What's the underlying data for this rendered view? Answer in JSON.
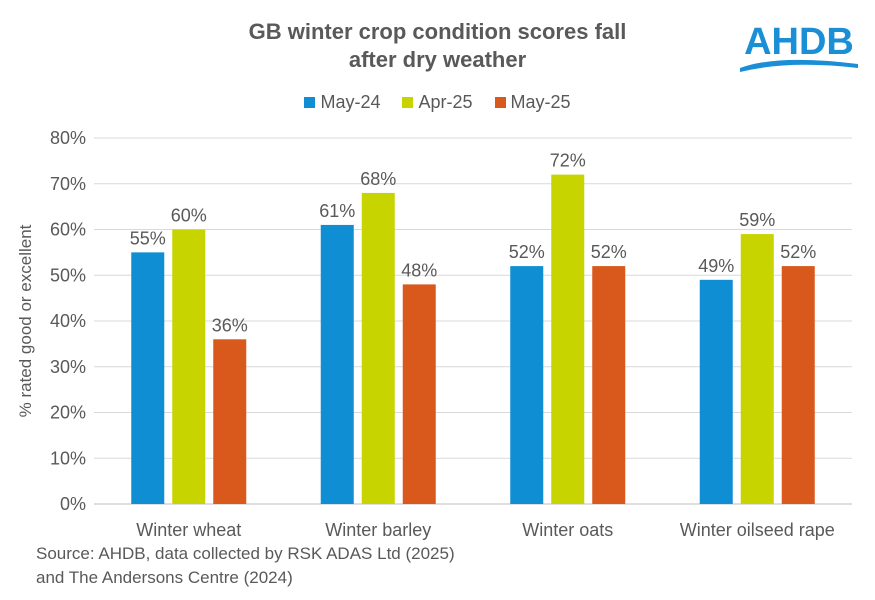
{
  "logo": {
    "text": "AHDB",
    "color": "#1a8fd6"
  },
  "source": {
    "line1": "Source: AHDB, data collected by RSK ADAS Ltd (2025)",
    "line2": "and The Andersons Centre (2024)"
  },
  "chart_data": {
    "type": "bar",
    "title_line1": "GB winter crop condition scores fall",
    "title_line2": "after dry weather",
    "ylabel": "% rated good or excellent",
    "xlabel": "",
    "ylim": [
      0,
      80
    ],
    "ytick_step": 10,
    "yticks": [
      "0%",
      "10%",
      "20%",
      "30%",
      "40%",
      "50%",
      "60%",
      "70%",
      "80%"
    ],
    "grid": true,
    "legend_position": "top",
    "categories": [
      "Winter wheat",
      "Winter barley",
      "Winter oats",
      "Winter oilseed rape"
    ],
    "series": [
      {
        "name": "May-24",
        "color": "#0f8ed3",
        "values": [
          55,
          61,
          52,
          49
        ],
        "labels": [
          "55%",
          "61%",
          "52%",
          "49%"
        ]
      },
      {
        "name": "Apr-25",
        "color": "#c8d400",
        "values": [
          60,
          68,
          72,
          59
        ],
        "labels": [
          "60%",
          "68%",
          "72%",
          "59%"
        ]
      },
      {
        "name": "May-25",
        "color": "#d9581b",
        "values": [
          36,
          48,
          52,
          52
        ],
        "labels": [
          "36%",
          "48%",
          "52%",
          "52%"
        ]
      }
    ]
  }
}
